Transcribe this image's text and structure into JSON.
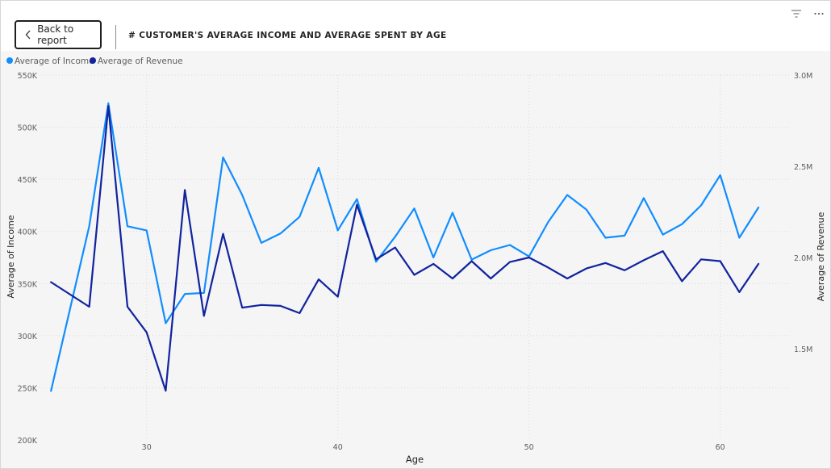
{
  "header": {
    "back_label": "Back to report",
    "title": "# CUSTOMER'S AVERAGE INCOME AND AVERAGE SPENT BY AGE"
  },
  "colors": {
    "income": "#118DFF",
    "revenue": "#12239E",
    "grid": "#d8dad8",
    "text": "#605E5C"
  },
  "chart_data": {
    "type": "line",
    "title": "# CUSTOMER'S AVERAGE INCOME AND AVERAGE SPENT BY AGE",
    "xlabel": "Age",
    "ylabel_left": "Average of Income",
    "ylabel_right": "Average of Revenue",
    "legend_position": "top-left",
    "grid": true,
    "xlim": [
      24.4,
      63.6
    ],
    "ylim_left": [
      200000,
      550000
    ],
    "ylim_right": [
      1000000,
      3000000
    ],
    "x_ticks": [
      30,
      40,
      50,
      60
    ],
    "x_tick_labels": [
      "30",
      "40",
      "50",
      "60"
    ],
    "y_left_ticks": [
      200000,
      250000,
      300000,
      350000,
      400000,
      450000,
      500000,
      550000
    ],
    "y_left_tick_labels": [
      "200K",
      "250K",
      "300K",
      "350K",
      "400K",
      "450K",
      "500K",
      "550K"
    ],
    "y_right_ticks": [
      1500000,
      2000000,
      2500000,
      3000000
    ],
    "y_right_tick_labels": [
      "1.5M",
      "2.0M",
      "2.5M",
      "3.0M"
    ],
    "x": [
      25,
      27,
      28,
      29,
      30,
      31,
      32,
      33,
      34,
      35,
      36,
      37,
      38,
      39,
      40,
      41,
      42,
      43,
      44,
      45,
      46,
      47,
      48,
      49,
      50,
      51,
      52,
      53,
      54,
      55,
      56,
      57,
      58,
      59,
      60,
      61,
      62
    ],
    "series": [
      {
        "name": "Average of Income",
        "axis": "left",
        "values": [
          247000,
          405000,
          523000,
          405000,
          401000,
          312000,
          340000,
          341000,
          471000,
          435000,
          389000,
          398000,
          414000,
          461000,
          401000,
          431000,
          371000,
          395000,
          422000,
          375000,
          418000,
          373000,
          382000,
          387000,
          376000,
          409000,
          435000,
          421000,
          394000,
          396000,
          432000,
          397000,
          407000,
          425000,
          454000,
          394000,
          423000
        ]
      },
      {
        "name": "Average of Revenue",
        "axis": "right",
        "values": [
          1865000,
          1730000,
          2830000,
          1730000,
          1590000,
          1270000,
          2370000,
          1680000,
          2130000,
          1725000,
          1740000,
          1735000,
          1695000,
          1880000,
          1785000,
          2290000,
          1990000,
          2055000,
          1905000,
          1965000,
          1885000,
          1980000,
          1885000,
          1975000,
          2000000,
          1945000,
          1885000,
          1940000,
          1970000,
          1930000,
          1985000,
          2035000,
          1870000,
          1990000,
          1980000,
          1810000,
          1965000
        ]
      }
    ]
  }
}
